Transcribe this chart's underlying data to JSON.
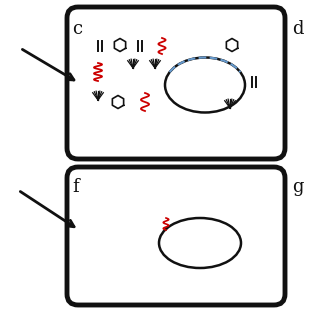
{
  "bg_color": "#ffffff",
  "black": "#111111",
  "red": "#cc0000",
  "blue_dash": "#6699cc",
  "label_c": "c",
  "label_d": "d",
  "label_f": "f",
  "label_g": "g"
}
